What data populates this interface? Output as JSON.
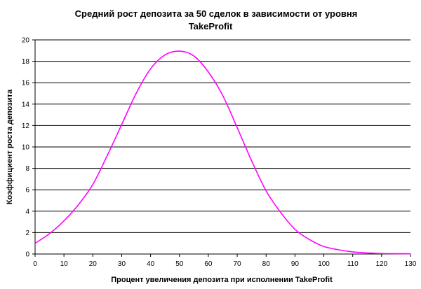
{
  "chart_data": {
    "type": "line",
    "title_line1": "Средний рост депозита за 50 сделок в зависимости от уровня",
    "title_line2": "TakeProfit",
    "xlabel": "Процент увеличения депозита при исполнении TakeProfit",
    "ylabel": "Коэффициент роста депозита",
    "xlim": [
      0,
      130
    ],
    "ylim": [
      0,
      20
    ],
    "x_ticks": [
      "0",
      "10",
      "20",
      "30",
      "40",
      "50",
      "60",
      "70",
      "80",
      "90",
      "100",
      "110",
      "120",
      "130"
    ],
    "y_ticks": [
      "0",
      "2",
      "4",
      "6",
      "8",
      "10",
      "12",
      "14",
      "16",
      "18",
      "20"
    ],
    "grid": "horizontal",
    "legend": "none",
    "series": [
      {
        "color": "#ff00ff",
        "x": [
          0,
          5,
          10,
          15,
          20,
          25,
          30,
          35,
          40,
          45,
          50,
          55,
          60,
          65,
          70,
          75,
          80,
          85,
          90,
          95,
          100,
          105,
          110,
          115,
          120,
          125,
          130
        ],
        "y": [
          1.0,
          1.9,
          3.1,
          4.6,
          6.5,
          9.2,
          12.1,
          15.0,
          17.3,
          18.6,
          18.95,
          18.5,
          17.0,
          14.8,
          11.8,
          8.7,
          5.9,
          3.9,
          2.3,
          1.35,
          0.7,
          0.4,
          0.2,
          0.1,
          0.05,
          0.03,
          0.02
        ]
      }
    ]
  }
}
